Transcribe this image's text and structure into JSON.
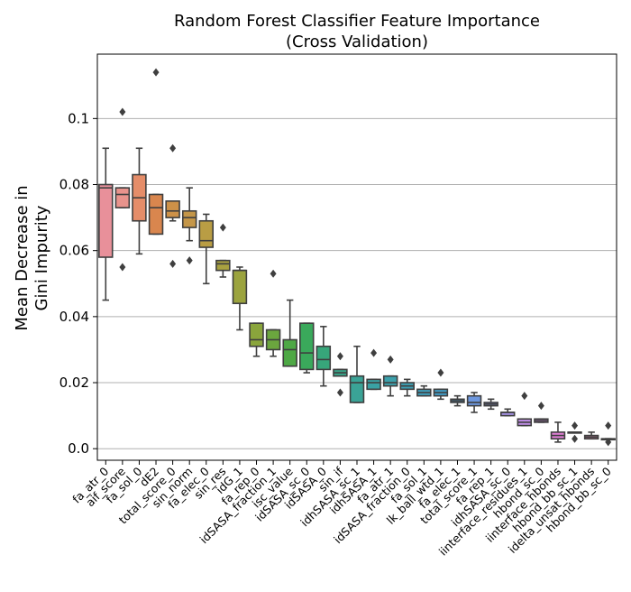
{
  "chart_data": {
    "type": "box",
    "title": "Random Forest Classifier Feature Importance",
    "subtitle": "(Cross Validation)",
    "ylabel_line1": "Mean Decrease in",
    "ylabel_line2": "Gini Impurity",
    "xlabel": "",
    "ylim": [
      -0.0035,
      0.1195
    ],
    "yticks": [
      0.0,
      0.02,
      0.04,
      0.06,
      0.08,
      0.1
    ],
    "ytick_labels": [
      "0.0",
      "0.02",
      "0.04",
      "0.06",
      "0.08",
      "0.1"
    ],
    "grid": "y",
    "categories": [
      {
        "name": "fa_atr_0",
        "color": "#e8909a",
        "whisker_low": 0.045,
        "q1": 0.058,
        "median": 0.079,
        "q3": 0.08,
        "whisker_high": 0.091,
        "outliers": []
      },
      {
        "name": "aif_score",
        "color": "#e8938c",
        "whisker_low": 0.073,
        "q1": 0.073,
        "median": 0.077,
        "q3": 0.079,
        "whisker_high": 0.079,
        "outliers": [
          0.055,
          0.102
        ]
      },
      {
        "name": "fa_sol_0",
        "color": "#e58d69",
        "whisker_low": 0.059,
        "q1": 0.069,
        "median": 0.076,
        "q3": 0.083,
        "whisker_high": 0.091,
        "outliers": []
      },
      {
        "name": "dE2",
        "color": "#d9864e",
        "whisker_low": 0.065,
        "q1": 0.065,
        "median": 0.073,
        "q3": 0.077,
        "whisker_high": 0.077,
        "outliers": [
          0.114
        ]
      },
      {
        "name": "total_score_0",
        "color": "#cd9148",
        "whisker_low": 0.069,
        "q1": 0.07,
        "median": 0.072,
        "q3": 0.075,
        "whisker_high": 0.075,
        "outliers": [
          0.056,
          0.091
        ]
      },
      {
        "name": "sin_norm",
        "color": "#c49648",
        "whisker_low": 0.063,
        "q1": 0.067,
        "median": 0.07,
        "q3": 0.072,
        "whisker_high": 0.079,
        "outliers": [
          0.057
        ]
      },
      {
        "name": "fa_elec_0",
        "color": "#b99d44",
        "whisker_low": 0.05,
        "q1": 0.061,
        "median": 0.063,
        "q3": 0.069,
        "whisker_high": 0.071,
        "outliers": []
      },
      {
        "name": "sin_res",
        "color": "#a8a140",
        "whisker_low": 0.052,
        "q1": 0.054,
        "median": 0.056,
        "q3": 0.057,
        "whisker_high": 0.057,
        "outliers": [
          0.067
        ]
      },
      {
        "name": "idG_1",
        "color": "#9ba33e",
        "whisker_low": 0.036,
        "q1": 0.044,
        "median": 0.054,
        "q3": 0.054,
        "whisker_high": 0.055,
        "outliers": []
      },
      {
        "name": "fa_rep_0",
        "color": "#8aa53c",
        "whisker_low": 0.028,
        "q1": 0.031,
        "median": 0.033,
        "q3": 0.038,
        "whisker_high": 0.038,
        "outliers": []
      },
      {
        "name": "idSASA_fraction_1",
        "color": "#6ba63e",
        "whisker_low": 0.028,
        "q1": 0.03,
        "median": 0.033,
        "q3": 0.036,
        "whisker_high": 0.036,
        "outliers": [
          0.053
        ]
      },
      {
        "name": "isc_value",
        "color": "#4ea845",
        "whisker_low": 0.025,
        "q1": 0.025,
        "median": 0.03,
        "q3": 0.033,
        "whisker_high": 0.045,
        "outliers": []
      },
      {
        "name": "idSASA_sc_0",
        "color": "#3aa95b",
        "whisker_low": 0.023,
        "q1": 0.024,
        "median": 0.029,
        "q3": 0.038,
        "whisker_high": 0.038,
        "outliers": []
      },
      {
        "name": "idSASA_0",
        "color": "#37a67a",
        "whisker_low": 0.019,
        "q1": 0.024,
        "median": 0.027,
        "q3": 0.031,
        "whisker_high": 0.037,
        "outliers": []
      },
      {
        "name": "sin_if",
        "color": "#38a488",
        "whisker_low": 0.022,
        "q1": 0.022,
        "median": 0.023,
        "q3": 0.024,
        "whisker_high": 0.024,
        "outliers": [
          0.017,
          0.028
        ]
      },
      {
        "name": "idhSASA_sc_1",
        "color": "#3aa396",
        "whisker_low": 0.014,
        "q1": 0.014,
        "median": 0.02,
        "q3": 0.022,
        "whisker_high": 0.031,
        "outliers": []
      },
      {
        "name": "idhSASA_1",
        "color": "#3aa1a3",
        "whisker_low": 0.018,
        "q1": 0.018,
        "median": 0.02,
        "q3": 0.021,
        "whisker_high": 0.021,
        "outliers": [
          0.029
        ]
      },
      {
        "name": "fa_atr_1",
        "color": "#3ca0ab",
        "whisker_low": 0.016,
        "q1": 0.019,
        "median": 0.02,
        "q3": 0.022,
        "whisker_high": 0.022,
        "outliers": [
          0.027
        ]
      },
      {
        "name": "idSASA_fraction_0",
        "color": "#3e9fb3",
        "whisker_low": 0.016,
        "q1": 0.018,
        "median": 0.019,
        "q3": 0.02,
        "whisker_high": 0.021,
        "outliers": []
      },
      {
        "name": "fa_sol_1",
        "color": "#3f9ebb",
        "whisker_low": 0.016,
        "q1": 0.016,
        "median": 0.017,
        "q3": 0.018,
        "whisker_high": 0.019,
        "outliers": []
      },
      {
        "name": "lk_ball_wtd_1",
        "color": "#419cc6",
        "whisker_low": 0.015,
        "q1": 0.016,
        "median": 0.017,
        "q3": 0.018,
        "whisker_high": 0.018,
        "outliers": [
          0.023
        ]
      },
      {
        "name": "fa_elec_1",
        "color": "#4799d1",
        "whisker_low": 0.013,
        "q1": 0.014,
        "median": 0.0145,
        "q3": 0.015,
        "whisker_high": 0.016,
        "outliers": []
      },
      {
        "name": "total_score_1",
        "color": "#6d97de",
        "whisker_low": 0.011,
        "q1": 0.013,
        "median": 0.014,
        "q3": 0.016,
        "whisker_high": 0.017,
        "outliers": []
      },
      {
        "name": "fa_rep_1",
        "color": "#8a96e6",
        "whisker_low": 0.012,
        "q1": 0.013,
        "median": 0.0135,
        "q3": 0.014,
        "whisker_high": 0.015,
        "outliers": []
      },
      {
        "name": "idhSASA_sc_0",
        "color": "#a894ea",
        "whisker_low": 0.01,
        "q1": 0.01,
        "median": 0.011,
        "q3": 0.011,
        "whisker_high": 0.012,
        "outliers": []
      },
      {
        "name": "iinterface_residues_1",
        "color": "#c18fe8",
        "whisker_low": 0.007,
        "q1": 0.007,
        "median": 0.008,
        "q3": 0.009,
        "whisker_high": 0.009,
        "outliers": [
          0.016
        ]
      },
      {
        "name": "hbond_sc_0",
        "color": "#d38ae6",
        "whisker_low": 0.008,
        "q1": 0.008,
        "median": 0.0085,
        "q3": 0.009,
        "whisker_high": 0.009,
        "outliers": [
          0.013
        ]
      },
      {
        "name": "iinterface_hbonds",
        "color": "#e27fd8",
        "whisker_low": 0.002,
        "q1": 0.003,
        "median": 0.004,
        "q3": 0.005,
        "whisker_high": 0.008,
        "outliers": []
      },
      {
        "name": "hbond_bb_sc_1",
        "color": "#e77fc4",
        "whisker_low": 0.005,
        "q1": 0.005,
        "median": 0.005,
        "q3": 0.005,
        "whisker_high": 0.005,
        "outliers": [
          0.003,
          0.007
        ]
      },
      {
        "name": "idelta_unsat_hbonds",
        "color": "#e889b2",
        "whisker_low": 0.003,
        "q1": 0.003,
        "median": 0.0035,
        "q3": 0.004,
        "whisker_high": 0.005,
        "outliers": []
      },
      {
        "name": "hbond_bb_sc_0",
        "color": "#e88ea4",
        "whisker_low": 0.003,
        "q1": 0.003,
        "median": 0.003,
        "q3": 0.003,
        "whisker_high": 0.003,
        "outliers": [
          0.002,
          0.007
        ]
      }
    ]
  }
}
